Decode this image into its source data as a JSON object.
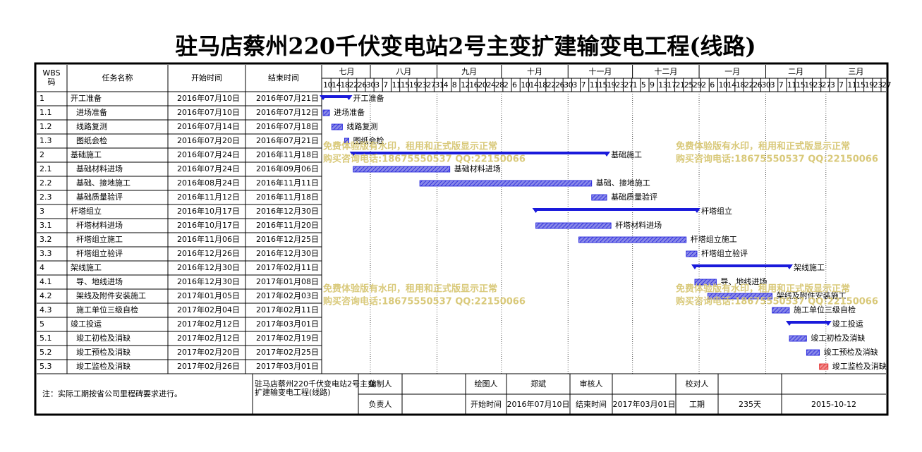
{
  "title": "驻马店蔡州220千伏变电站2号主变扩建输变电工程(线路)",
  "header": {
    "wbs": [
      "WBS",
      "码"
    ],
    "name": "任务名称",
    "start": "开始时间",
    "end": "结束时间"
  },
  "months": [
    "七月",
    "八月",
    "九月",
    "十月",
    "十一月",
    "十二月",
    "一月",
    "二月",
    "三月"
  ],
  "day_ticks": [
    10,
    14,
    18,
    22,
    26,
    30,
    3,
    7,
    11,
    15,
    19,
    23,
    27,
    31,
    4,
    8,
    12,
    16,
    20,
    24,
    28,
    2,
    6,
    10,
    14,
    18,
    22,
    26,
    30,
    3,
    7,
    11,
    15,
    19,
    23,
    27,
    1,
    5,
    9,
    13,
    17,
    21,
    25,
    29,
    2,
    6,
    10,
    14,
    18,
    22,
    26,
    30,
    3,
    7,
    11,
    15,
    19,
    23,
    27,
    3,
    7,
    11,
    15,
    19,
    23,
    27
  ],
  "bar_color": "#1a1adb",
  "tasks": [
    {
      "wbs": "1",
      "name": "开工准备",
      "start": "2016年07月10日",
      "end": "2016年07月21日",
      "summary": true
    },
    {
      "wbs": "1.1",
      "name": "进场准备",
      "start": "2016年07月10日",
      "end": "2016年07月12日"
    },
    {
      "wbs": "1.2",
      "name": "线路复测",
      "start": "2016年07月14日",
      "end": "2016年07月18日"
    },
    {
      "wbs": "1.3",
      "name": "图纸会检",
      "start": "2016年07月20日",
      "end": "2016年07月21日"
    },
    {
      "wbs": "2",
      "name": "基础施工",
      "start": "2016年07月24日",
      "end": "2016年11月18日",
      "summary": true
    },
    {
      "wbs": "2.1",
      "name": "基础材料进场",
      "start": "2016年07月24日",
      "end": "2016年09月06日"
    },
    {
      "wbs": "2.2",
      "name": "基础、接地施工",
      "start": "2016年08月24日",
      "end": "2016年11月11日"
    },
    {
      "wbs": "2.3",
      "name": "基础质量验评",
      "start": "2016年11月12日",
      "end": "2016年11月18日"
    },
    {
      "wbs": "3",
      "name": "杆塔组立",
      "start": "2016年10月17日",
      "end": "2016年12月30日",
      "summary": true
    },
    {
      "wbs": "3.1",
      "name": "杆塔材料进场",
      "start": "2016年10月17日",
      "end": "2016年11月20日"
    },
    {
      "wbs": "3.2",
      "name": "杆塔组立施工",
      "start": "2016年11月06日",
      "end": "2016年12月25日"
    },
    {
      "wbs": "3.3",
      "name": "杆塔组立验评",
      "start": "2016年12月26日",
      "end": "2016年12月30日"
    },
    {
      "wbs": "4",
      "name": "架线施工",
      "start": "2016年12月30日",
      "end": "2017年02月11日",
      "summary": true
    },
    {
      "wbs": "4.1",
      "name": "导、地线进场",
      "start": "2016年12月30日",
      "end": "2017年01月08日"
    },
    {
      "wbs": "4.2",
      "name": "架线及附件安装施工",
      "start": "2017年01月05日",
      "end": "2017年02月03日"
    },
    {
      "wbs": "4.3",
      "name": "施工单位三级自检",
      "start": "2017年02月04日",
      "end": "2017年02月11日"
    },
    {
      "wbs": "5",
      "name": "竣工投运",
      "start": "2017年02月12日",
      "end": "2017年03月01日",
      "summary": true
    },
    {
      "wbs": "5.1",
      "name": "竣工初检及消缺",
      "start": "2017年02月12日",
      "end": "2017年02月19日"
    },
    {
      "wbs": "5.2",
      "name": "竣工预检及消缺",
      "start": "2017年02月20日",
      "end": "2017年02月25日"
    },
    {
      "wbs": "5.3",
      "name": "竣工监检及消缺",
      "start": "2017年02月26日",
      "end": "2017年03月01日",
      "color": "#e02020"
    }
  ],
  "watermark": [
    "免费体验版有水印，租用和正式版显示正常",
    "购买咨询电话:18675550537 QQ:22150066"
  ],
  "footer": {
    "note": "注：实际工期按省公司里程碑要求进行。",
    "project": "驻马店蔡州220千伏变电站2号主变扩建输变电工程(线路)",
    "compiler_label": "编制人",
    "owner_label": "负责人",
    "drawer_label": "绘图人",
    "drawer": "郑斌",
    "reviewer_label": "审核人",
    "checker_label": "校对人",
    "start_label": "开始时间",
    "start": "2016年07月10日",
    "end_label": "结束时间",
    "end": "2017年03月01日",
    "duration_label": "工期",
    "duration": "235天",
    "date": "2015-10-12"
  }
}
